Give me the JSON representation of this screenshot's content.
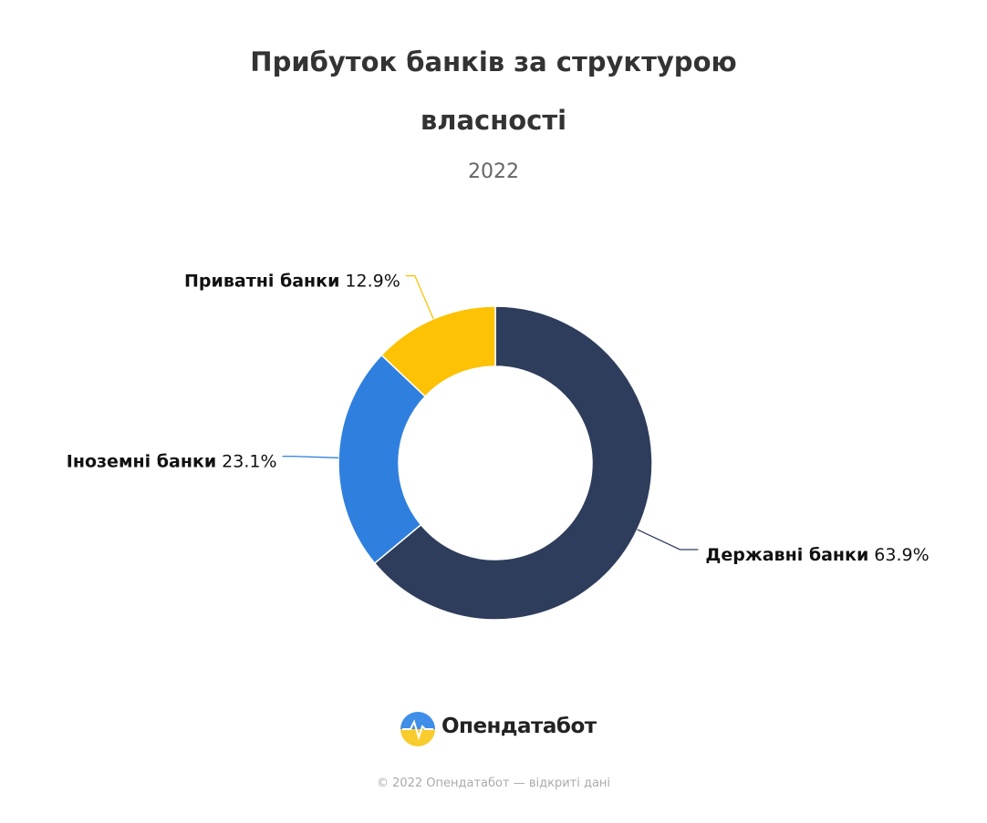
{
  "chart_data": {
    "type": "pie",
    "title": "Прибуток банків за структурою власності",
    "subtitle": "2022",
    "categories": [
      "Державні банки",
      "Іноземні банки",
      "Приватні банки"
    ],
    "values": [
      63.9,
      23.1,
      12.9
    ],
    "value_labels": [
      "63.9%",
      "23.1%",
      "12.9%"
    ],
    "colors": [
      "#2e3d5c",
      "#2f80de",
      "#fcc203"
    ]
  },
  "brand": "Опендатабот",
  "footer": "© 2022 Опендатабот — відкриті дані"
}
